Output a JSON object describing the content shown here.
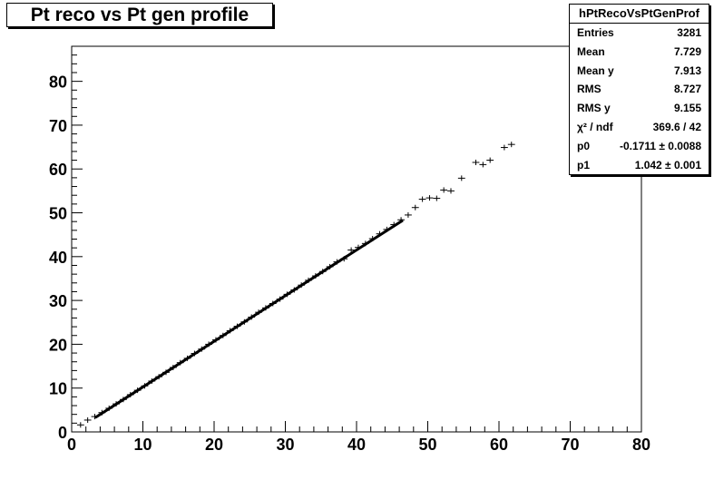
{
  "title": "Pt reco vs Pt gen profile",
  "stats": {
    "name": "hPtRecoVsPtGenProf",
    "rows": [
      {
        "label": "Entries",
        "value": "3281"
      },
      {
        "label": "Mean",
        "value": "7.729"
      },
      {
        "label": "Mean y",
        "value": "7.913"
      },
      {
        "label": "RMS",
        "value": "8.727"
      },
      {
        "label": "RMS y",
        "value": "9.155"
      },
      {
        "label": "χ² / ndf",
        "value": "369.6 / 42"
      },
      {
        "label": "p0",
        "value": "-0.1711 ± 0.0088"
      },
      {
        "label": "p1",
        "value": "1.042 ± 0.001"
      }
    ]
  },
  "chart_data": {
    "type": "scatter",
    "title": "Pt reco vs Pt gen profile",
    "xlim": [
      0,
      80
    ],
    "ylim": [
      0,
      88
    ],
    "x_ticks": [
      "0",
      "10",
      "20",
      "30",
      "40",
      "50",
      "60",
      "70",
      "80"
    ],
    "y_ticks": [
      "0",
      "10",
      "20",
      "30",
      "40",
      "50",
      "60",
      "70",
      "80"
    ],
    "grid": false,
    "profile_points": [
      {
        "x": 1.25,
        "y": 1.6
      },
      {
        "x": 2.25,
        "y": 2.7
      },
      {
        "x": 3.25,
        "y": 3.5
      },
      {
        "x": 4.25,
        "y": 4.4
      },
      {
        "x": 5.25,
        "y": 5.4
      },
      {
        "x": 6.25,
        "y": 6.4
      },
      {
        "x": 7.25,
        "y": 7.4
      },
      {
        "x": 8.25,
        "y": 8.5
      },
      {
        "x": 9.25,
        "y": 9.5
      },
      {
        "x": 10.25,
        "y": 10.5
      },
      {
        "x": 11.25,
        "y": 11.6
      },
      {
        "x": 12.25,
        "y": 12.6
      },
      {
        "x": 13.25,
        "y": 13.6
      },
      {
        "x": 14.25,
        "y": 14.7
      },
      {
        "x": 15.25,
        "y": 15.8
      },
      {
        "x": 16.25,
        "y": 16.8
      },
      {
        "x": 17.25,
        "y": 17.9
      },
      {
        "x": 18.25,
        "y": 18.9
      },
      {
        "x": 19.25,
        "y": 20.0
      },
      {
        "x": 20.25,
        "y": 21.0
      },
      {
        "x": 21.25,
        "y": 22.0
      },
      {
        "x": 22.25,
        "y": 23.1
      },
      {
        "x": 23.25,
        "y": 24.1
      },
      {
        "x": 24.25,
        "y": 25.1
      },
      {
        "x": 25.25,
        "y": 26.2
      },
      {
        "x": 26.25,
        "y": 27.3
      },
      {
        "x": 27.25,
        "y": 28.3
      },
      {
        "x": 28.25,
        "y": 29.3
      },
      {
        "x": 29.25,
        "y": 30.3
      },
      {
        "x": 30.25,
        "y": 31.4
      },
      {
        "x": 31.25,
        "y": 32.4
      },
      {
        "x": 32.25,
        "y": 33.5
      },
      {
        "x": 33.25,
        "y": 34.6
      },
      {
        "x": 34.25,
        "y": 35.6
      },
      {
        "x": 35.25,
        "y": 36.6
      },
      {
        "x": 36.25,
        "y": 37.7
      },
      {
        "x": 37.25,
        "y": 38.8
      },
      {
        "x": 38.25,
        "y": 39.5
      },
      {
        "x": 39.25,
        "y": 41.5
      },
      {
        "x": 40.25,
        "y": 42.1
      },
      {
        "x": 41.25,
        "y": 43.0
      },
      {
        "x": 42.25,
        "y": 44.1
      },
      {
        "x": 43.25,
        "y": 45.2
      },
      {
        "x": 44.25,
        "y": 46.2
      },
      {
        "x": 45.25,
        "y": 47.3
      },
      {
        "x": 46.25,
        "y": 48.4
      },
      {
        "x": 47.25,
        "y": 49.5
      },
      {
        "x": 48.25,
        "y": 51.2
      },
      {
        "x": 49.25,
        "y": 53.1
      },
      {
        "x": 50.25,
        "y": 53.4
      },
      {
        "x": 51.25,
        "y": 53.3
      },
      {
        "x": 52.25,
        "y": 55.2
      },
      {
        "x": 53.25,
        "y": 55.0
      },
      {
        "x": 54.75,
        "y": 57.9
      },
      {
        "x": 56.75,
        "y": 61.5
      },
      {
        "x": 57.75,
        "y": 61.0
      },
      {
        "x": 58.75,
        "y": 62.0
      },
      {
        "x": 60.75,
        "y": 64.9
      },
      {
        "x": 61.75,
        "y": 65.6
      }
    ],
    "fit_line": {
      "p0": -0.1711,
      "p1": 1.042,
      "x_range": [
        3.3,
        46.5
      ]
    }
  }
}
